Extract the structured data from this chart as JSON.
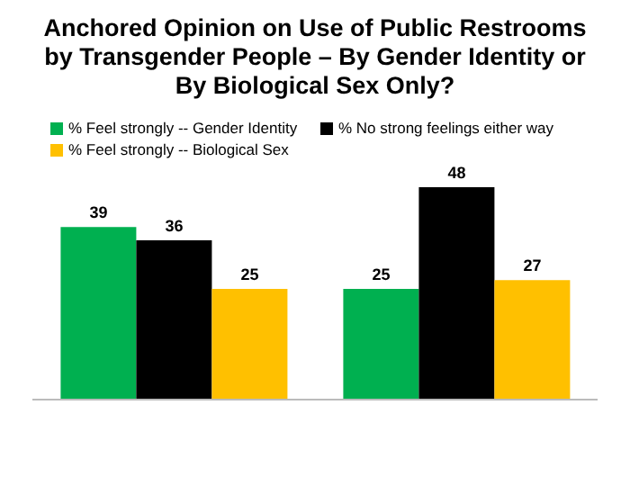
{
  "chart_data": {
    "type": "bar",
    "title": "Anchored Opinion on Use of Public Restrooms by Transgender People – By Gender Identity or By Biological Sex Only?",
    "categories": [
      null,
      null
    ],
    "series": [
      {
        "name": "% Feel strongly -- Gender Identity",
        "color": "#00b050",
        "values": [
          39,
          25
        ]
      },
      {
        "name": "% No strong feelings either way",
        "color": "#000000",
        "values": [
          36,
          48
        ]
      },
      {
        "name": "% Feel strongly -- Biological Sex",
        "color": "#ffc000",
        "values": [
          25,
          27
        ]
      }
    ],
    "data_labels": true,
    "legend": "top",
    "grid": false
  }
}
